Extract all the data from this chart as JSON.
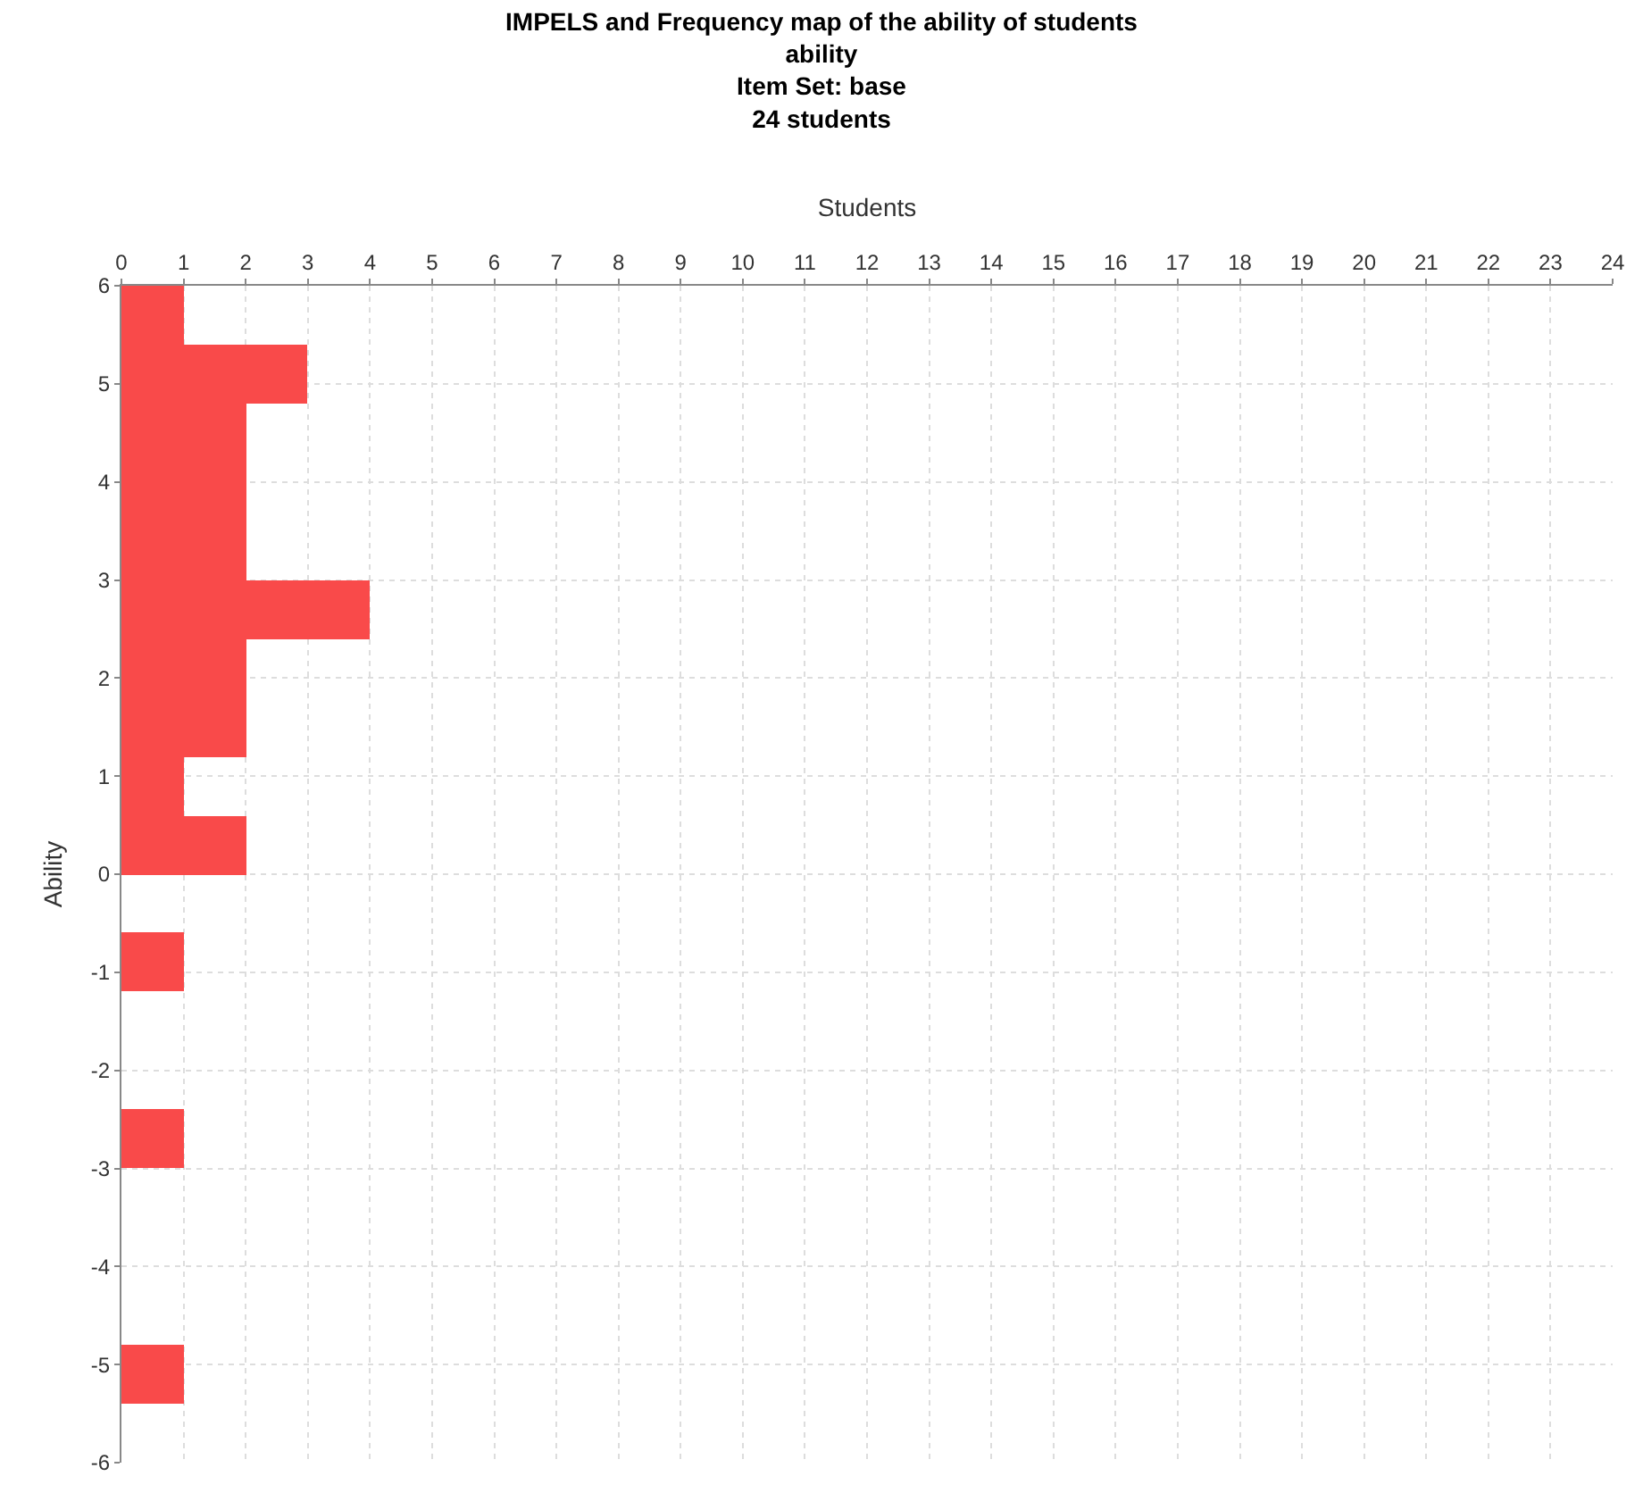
{
  "chart_data": {
    "type": "histogram",
    "orientation": "horizontal",
    "title": "IMPELS and Frequency map of the ability of students",
    "subtitle": "ability\nItem Set: base\n24 students",
    "xlabel": "Students",
    "ylabel": "Ability",
    "bins": [
      -6,
      -5.4,
      -4.8,
      -4.2,
      -3.6,
      -3,
      -2.4,
      -1.8,
      -1.2,
      -0.6,
      0,
      0.6,
      1.2,
      1.8,
      2.4,
      3,
      3.6,
      4.2,
      4.8,
      5.4,
      6
    ],
    "values": [
      0,
      1,
      0,
      0,
      0,
      1,
      0,
      0,
      1,
      0,
      2,
      1,
      2,
      2,
      4,
      2,
      2,
      2,
      3,
      1
    ],
    "color": "#f94a4a",
    "xlim": [
      0,
      24
    ],
    "xticks": [
      0,
      1,
      2,
      3,
      4,
      5,
      6,
      7,
      8,
      9,
      10,
      11,
      12,
      13,
      14,
      15,
      16,
      17,
      18,
      19,
      20,
      21,
      22,
      23,
      24
    ],
    "ylim": [
      -6,
      6
    ],
    "yticks": [
      -6,
      -5,
      -4,
      -3,
      -2,
      -1,
      0,
      1,
      2,
      3,
      4,
      5,
      6
    ],
    "grid": true
  }
}
